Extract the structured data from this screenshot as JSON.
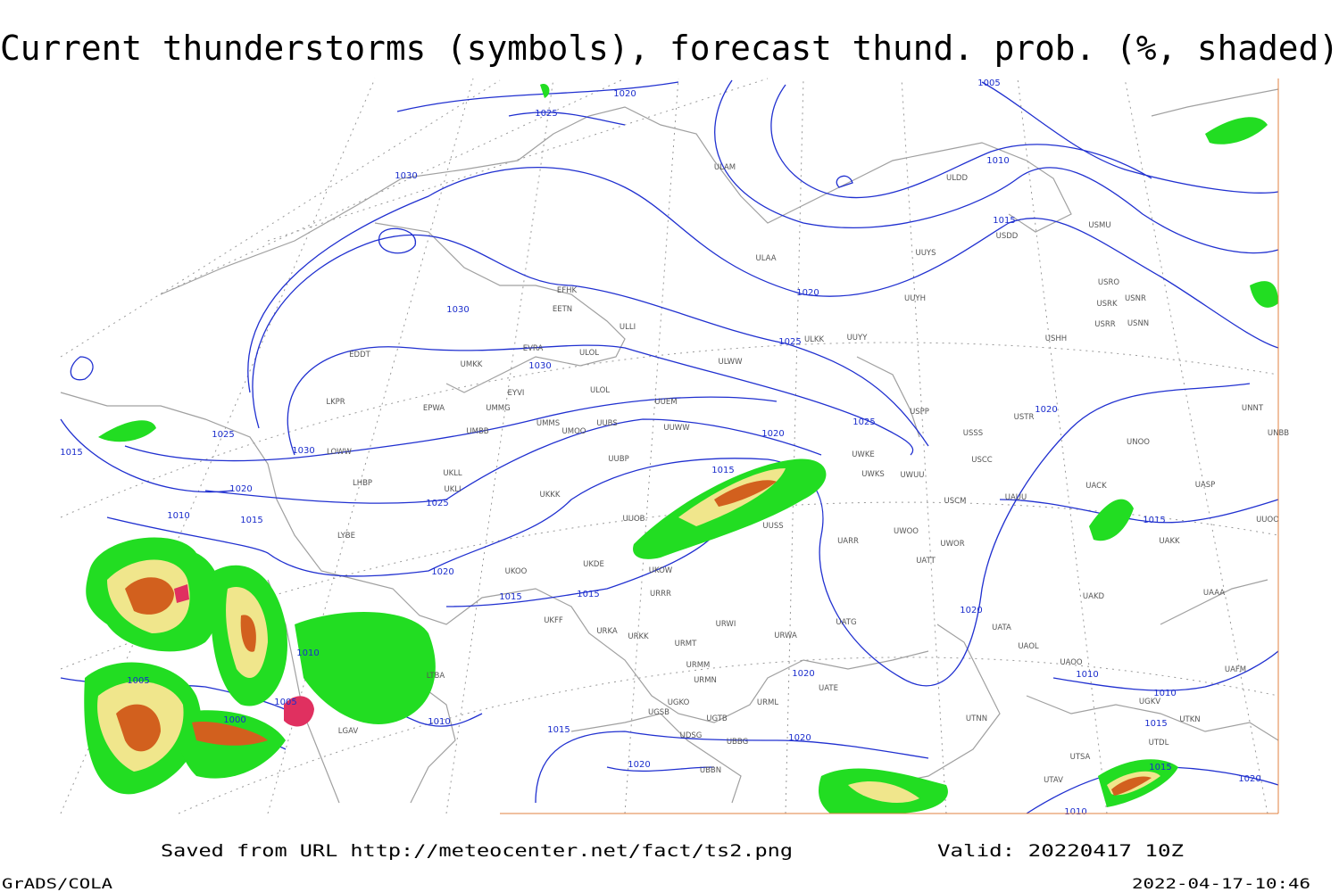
{
  "title": "Current thunderstorms (symbols), forecast thund. prob. (%, shaded)",
  "footer": {
    "source": "Saved from URL http://meteocenter.net/fact/ts2.png",
    "valid": "Valid: 20220417 10Z",
    "software": "GrADS/COLA",
    "timestamp": "2022-04-17-10:46"
  },
  "isobar_labels": [
    "1020",
    "1025",
    "1030",
    "1005",
    "1010",
    "1015",
    "1020",
    "1030",
    "1030",
    "1025",
    "1025",
    "1020",
    "1025",
    "1030",
    "1020",
    "1015",
    "1015",
    "1020",
    "1025",
    "1015",
    "1010",
    "1015",
    "1020",
    "1015",
    "1015",
    "1020",
    "1010",
    "1005",
    "1020",
    "1010",
    "1010",
    "1005",
    "1000",
    "1010",
    "1015",
    "1020",
    "1020",
    "1015",
    "1020",
    "1010",
    "1015"
  ],
  "stations": [
    "ULAM",
    "ULDD",
    "USMU",
    "UUYS",
    "USDD",
    "ULAA",
    "USRO",
    "USRK",
    "USNR",
    "UUYH",
    "EFHK",
    "EETN",
    "ULLI",
    "USRR",
    "USNN",
    "ULKK",
    "UUYY",
    "USHH",
    "EVRA",
    "ULOL",
    "EDDT",
    "UMKK",
    "ULWW",
    "EYVI",
    "ULOL",
    "LKPR",
    "EPWA",
    "UMMG",
    "UUEM",
    "USPP",
    "USTR",
    "UNNT",
    "UMMS",
    "UUBS",
    "UUWW",
    "UMOO",
    "UMBB",
    "USSS",
    "UNOO",
    "UNBB",
    "LOWW",
    "UWKE",
    "UWKS",
    "UWUU",
    "USCC",
    "UKLL",
    "UKLI",
    "LHBP",
    "UUOB",
    "UUBP",
    "UACK",
    "UASP",
    "UKKK",
    "USCM",
    "UAUU",
    "UUOO",
    "LYBE",
    "UUSS",
    "UARR",
    "UWOO",
    "UWOR",
    "UATT",
    "UKOO",
    "UKDE",
    "UKOW",
    "URRR",
    "UAKD",
    "UAKK",
    "UAAA",
    "UKFF",
    "URKA",
    "URKK",
    "URWI",
    "URWA",
    "UATG",
    "UATA",
    "UAOL",
    "UAOO",
    "URMT",
    "URMM",
    "URMN",
    "UATE",
    "UGKO",
    "UGSB",
    "UGTB",
    "URML",
    "UTNN",
    "UDSG",
    "UBBG",
    "UBBN",
    "UTSA",
    "UTAV",
    "UTDL",
    "UTKN",
    "UAFM",
    "UGKV",
    "LTBA",
    "LGAV"
  ]
}
